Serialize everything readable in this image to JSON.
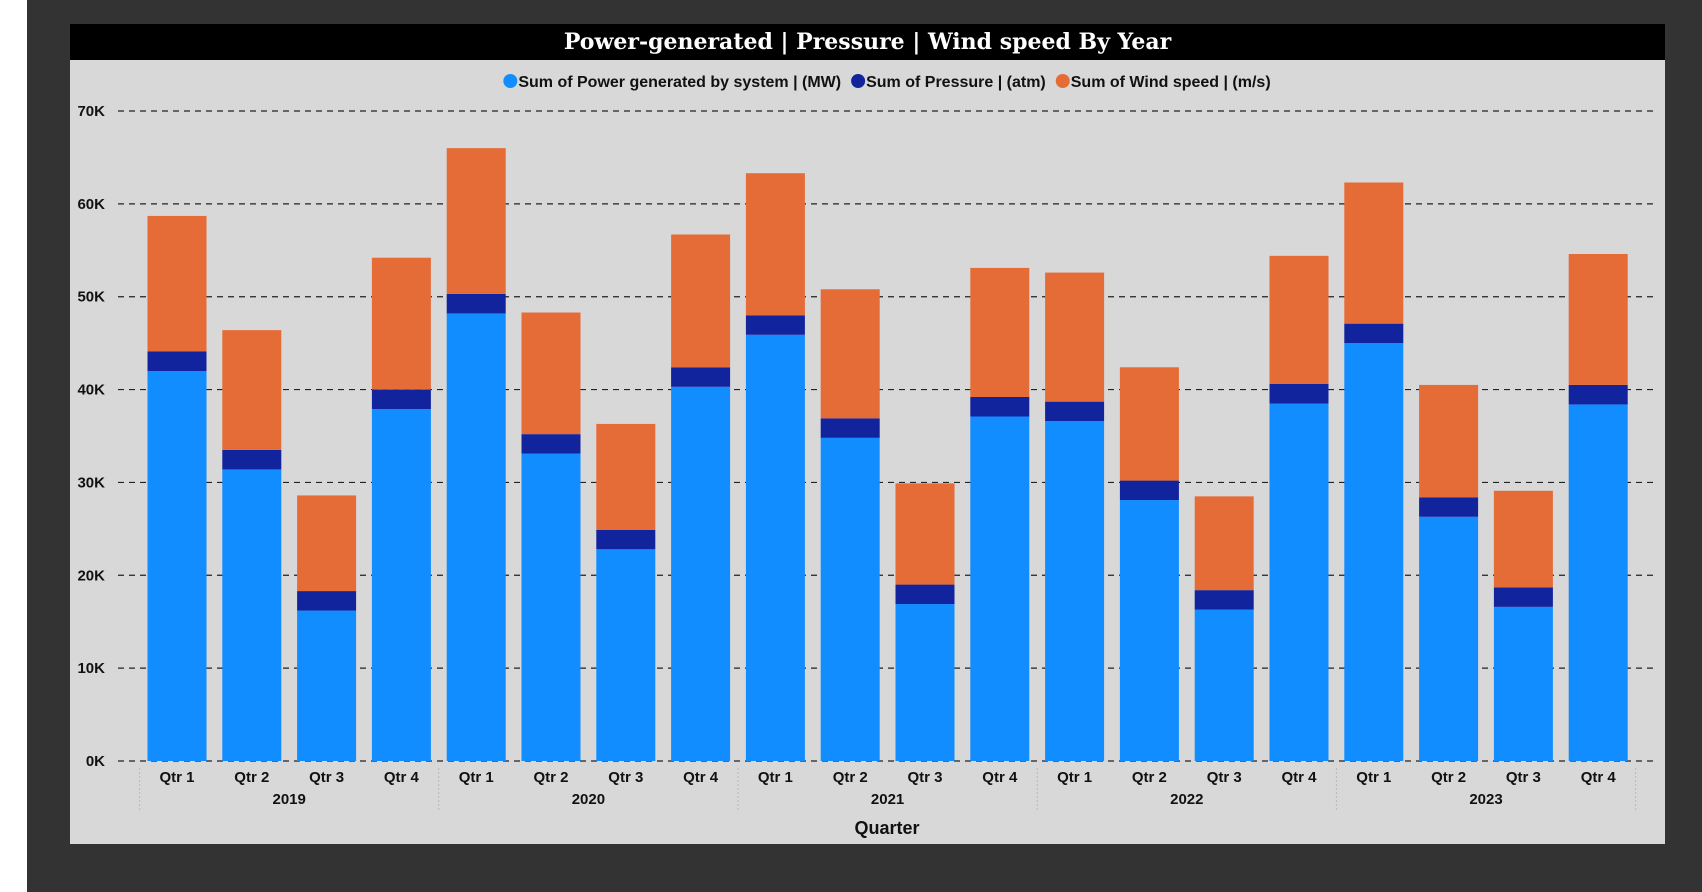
{
  "chart_data": {
    "type": "bar",
    "stacked": true,
    "title": "Power-generated | Pressure | Wind speed By Year",
    "xlabel": "Quarter",
    "ylabel": "",
    "ylim": [
      0,
      70000
    ],
    "yticks": [
      0,
      10000,
      20000,
      30000,
      40000,
      50000,
      60000,
      70000
    ],
    "ytick_labels": [
      "0K",
      "10K",
      "20K",
      "30K",
      "40K",
      "50K",
      "60K",
      "70K"
    ],
    "grid": true,
    "legend_position": "top",
    "categories": [
      "Qtr 1",
      "Qtr 2",
      "Qtr 3",
      "Qtr 4",
      "Qtr 1",
      "Qtr 2",
      "Qtr 3",
      "Qtr 4",
      "Qtr 1",
      "Qtr 2",
      "Qtr 3",
      "Qtr 4",
      "Qtr 1",
      "Qtr 2",
      "Qtr 3",
      "Qtr 4",
      "Qtr 1",
      "Qtr 2",
      "Qtr 3",
      "Qtr 4"
    ],
    "groups": [
      "2019",
      "2020",
      "2021",
      "2022",
      "2023"
    ],
    "series": [
      {
        "name": "Sum of Power generated by system | (MW)",
        "color": "#118dff",
        "values": [
          42000,
          31400,
          16200,
          37900,
          48200,
          33100,
          22800,
          40300,
          45900,
          34800,
          16900,
          37100,
          36600,
          28100,
          16300,
          38500,
          45000,
          26300,
          16600,
          38400
        ]
      },
      {
        "name": "Sum of Pressure | (atm)",
        "color": "#12239e",
        "values": [
          2100,
          2100,
          2100,
          2100,
          2100,
          2100,
          2100,
          2100,
          2100,
          2100,
          2100,
          2100,
          2100,
          2100,
          2100,
          2100,
          2100,
          2100,
          2100,
          2100
        ]
      },
      {
        "name": "Sum of Wind speed | (m/s)",
        "color": "#e66c37",
        "values": [
          14600,
          12900,
          10300,
          14200,
          15700,
          13100,
          11400,
          14300,
          15300,
          13900,
          10900,
          13900,
          13900,
          12200,
          10100,
          13800,
          15200,
          12100,
          10400,
          14100
        ]
      }
    ]
  }
}
